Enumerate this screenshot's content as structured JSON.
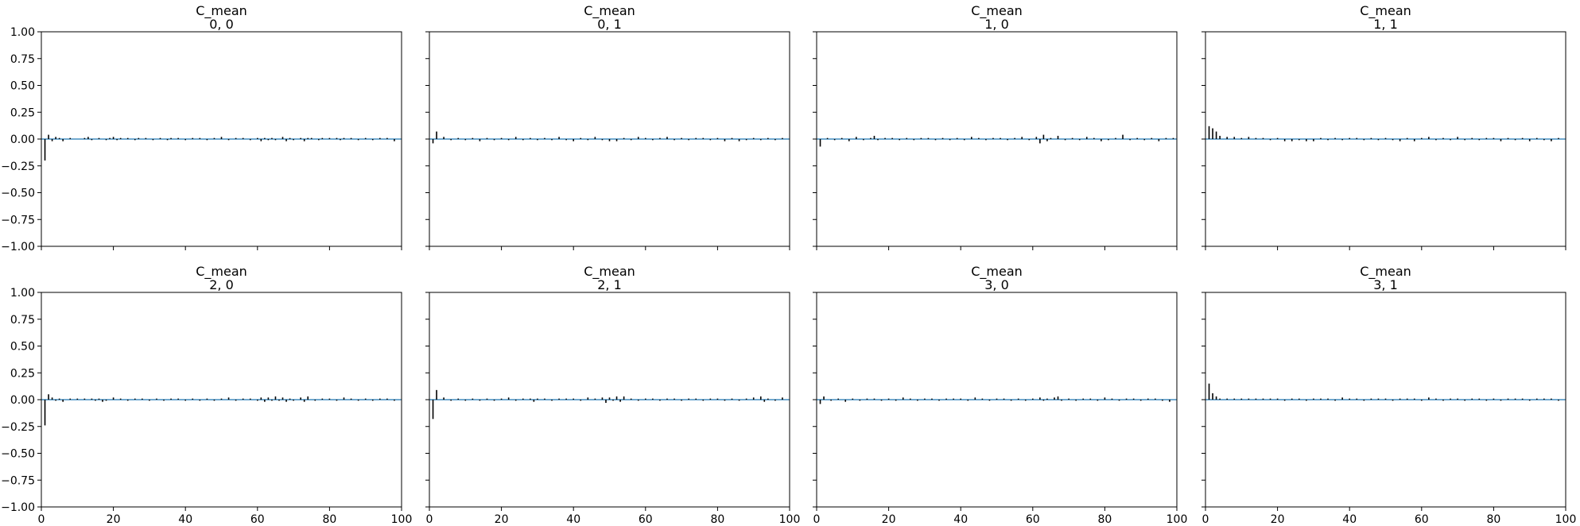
{
  "figure": {
    "background": "#ffffff",
    "bar_color": "#000000",
    "line_color": "#1f77b4"
  },
  "chart_data": [
    {
      "type": "bar",
      "title": [
        "C_mean",
        "0, 0"
      ],
      "xlim": [
        0,
        100
      ],
      "ylim": [
        -1,
        1
      ],
      "xticks": [
        "0",
        "20",
        "40",
        "60",
        "80",
        "100"
      ],
      "yticks": [
        "-1.00",
        "-0.75",
        "-0.50",
        "-0.25",
        "0.00",
        "0.25",
        "0.50",
        "0.75",
        "1.00"
      ],
      "show_xticklabels": false,
      "show_yticklabels": true,
      "lags": [
        1,
        2,
        3,
        4,
        5,
        6,
        8,
        12,
        13,
        14,
        16,
        18,
        19,
        20,
        21,
        22,
        24,
        26,
        27,
        29,
        31,
        33,
        35,
        36,
        38,
        40,
        42,
        44,
        46,
        48,
        50,
        52,
        54,
        56,
        58,
        60,
        61,
        62,
        63,
        64,
        65,
        67,
        68,
        69,
        70,
        72,
        73,
        74,
        75,
        77,
        78,
        80,
        82,
        83,
        84,
        86,
        88,
        90,
        92,
        94,
        96,
        98
      ],
      "values": [
        -0.2,
        0.04,
        -0.02,
        0.02,
        0.01,
        -0.02,
        0.01,
        0.01,
        0.02,
        -0.01,
        0.01,
        -0.01,
        0.01,
        0.02,
        -0.01,
        0.01,
        0.01,
        -0.01,
        0.01,
        0.01,
        -0.01,
        0.01,
        -0.01,
        0.01,
        0.01,
        -0.01,
        0.01,
        0.01,
        -0.01,
        0.01,
        0.02,
        -0.01,
        0.01,
        0.01,
        -0.01,
        0.01,
        -0.02,
        0.01,
        -0.01,
        0.01,
        -0.01,
        0.02,
        -0.02,
        0.01,
        -0.01,
        0.01,
        -0.02,
        0.01,
        0.01,
        -0.01,
        0.01,
        0.01,
        0.01,
        -0.01,
        0.01,
        0.01,
        -0.01,
        0.01,
        -0.01,
        0.01,
        0.01,
        -0.02
      ]
    },
    {
      "type": "bar",
      "title": [
        "C_mean",
        "0, 1"
      ],
      "xlim": [
        0,
        100
      ],
      "ylim": [
        -1,
        1
      ],
      "xticks": [
        "0",
        "20",
        "40",
        "60",
        "80",
        "100"
      ],
      "yticks": [
        "-1.00",
        "-0.75",
        "-0.50",
        "-0.25",
        "0.00",
        "0.25",
        "0.50",
        "0.75",
        "1.00"
      ],
      "show_xticklabels": false,
      "show_yticklabels": false,
      "lags": [
        1,
        2,
        4,
        6,
        8,
        10,
        12,
        14,
        16,
        18,
        20,
        22,
        24,
        26,
        28,
        30,
        32,
        34,
        36,
        38,
        40,
        42,
        44,
        46,
        48,
        50,
        52,
        54,
        56,
        58,
        60,
        62,
        64,
        66,
        68,
        70,
        72,
        74,
        76,
        78,
        80,
        82,
        84,
        86,
        88,
        90,
        92,
        94,
        96,
        98
      ],
      "values": [
        -0.04,
        0.07,
        0.02,
        -0.01,
        0.01,
        -0.01,
        0.01,
        -0.02,
        0.01,
        -0.01,
        0.01,
        -0.01,
        0.02,
        -0.01,
        0.01,
        -0.01,
        0.01,
        -0.01,
        0.02,
        -0.01,
        -0.02,
        0.01,
        -0.01,
        0.02,
        -0.01,
        -0.02,
        -0.02,
        0.01,
        -0.01,
        0.02,
        0.01,
        -0.01,
        0.01,
        0.02,
        -0.01,
        0.01,
        -0.01,
        0.01,
        0.01,
        -0.01,
        0.01,
        -0.02,
        0.01,
        -0.02,
        -0.01,
        0.01,
        -0.01,
        0.01,
        -0.01,
        0.01
      ]
    },
    {
      "type": "bar",
      "title": [
        "C_mean",
        "1, 0"
      ],
      "xlim": [
        0,
        100
      ],
      "ylim": [
        -1,
        1
      ],
      "xticks": [
        "0",
        "20",
        "40",
        "60",
        "80",
        "100"
      ],
      "yticks": [
        "-1.00",
        "-0.75",
        "-0.50",
        "-0.25",
        "0.00",
        "0.25",
        "0.50",
        "0.75",
        "1.00"
      ],
      "show_xticklabels": false,
      "show_yticklabels": false,
      "lags": [
        1,
        3,
        5,
        7,
        9,
        11,
        13,
        15,
        16,
        17,
        19,
        21,
        23,
        25,
        27,
        29,
        31,
        33,
        35,
        37,
        39,
        41,
        43,
        45,
        47,
        49,
        51,
        53,
        55,
        57,
        59,
        61,
        62,
        63,
        64,
        65,
        67,
        69,
        71,
        73,
        75,
        77,
        79,
        81,
        83,
        85,
        87,
        89,
        91,
        93,
        95,
        97,
        99
      ],
      "values": [
        -0.07,
        0.01,
        -0.01,
        0.01,
        -0.02,
        0.02,
        -0.01,
        0.01,
        0.03,
        -0.01,
        0.01,
        0.01,
        -0.01,
        0.01,
        -0.01,
        0.01,
        0.01,
        -0.01,
        0.01,
        -0.01,
        0.01,
        -0.01,
        0.02,
        0.01,
        -0.01,
        0.01,
        0.01,
        -0.01,
        0.01,
        0.02,
        -0.01,
        0.02,
        -0.04,
        0.04,
        -0.02,
        0.01,
        0.03,
        -0.01,
        0.01,
        -0.01,
        0.02,
        0.01,
        -0.02,
        -0.01,
        0.01,
        0.04,
        -0.01,
        0.01,
        -0.01,
        0.01,
        -0.02,
        0.01,
        0.01
      ]
    },
    {
      "type": "bar",
      "title": [
        "C_mean",
        "1, 1"
      ],
      "xlim": [
        0,
        100
      ],
      "ylim": [
        -1,
        1
      ],
      "xticks": [
        "0",
        "20",
        "40",
        "60",
        "80",
        "100"
      ],
      "yticks": [
        "-1.00",
        "-0.75",
        "-0.50",
        "-0.25",
        "0.00",
        "0.25",
        "0.50",
        "0.75",
        "1.00"
      ],
      "show_xticklabels": false,
      "show_yticklabels": false,
      "lags": [
        1,
        2,
        3,
        4,
        6,
        8,
        10,
        12,
        14,
        16,
        18,
        20,
        22,
        24,
        26,
        28,
        30,
        32,
        34,
        36,
        38,
        40,
        42,
        44,
        46,
        48,
        50,
        52,
        54,
        56,
        58,
        60,
        62,
        64,
        66,
        68,
        70,
        72,
        74,
        76,
        78,
        80,
        82,
        84,
        86,
        88,
        90,
        92,
        94,
        96,
        98
      ],
      "values": [
        0.12,
        0.1,
        0.07,
        0.03,
        0.02,
        0.02,
        0.01,
        0.02,
        0.01,
        0.01,
        -0.01,
        0.01,
        -0.02,
        -0.02,
        -0.01,
        -0.02,
        -0.02,
        0.01,
        -0.01,
        0.01,
        -0.01,
        0.01,
        0.01,
        -0.01,
        0.01,
        -0.01,
        0.01,
        -0.01,
        -0.02,
        0.01,
        -0.02,
        0.01,
        0.02,
        -0.01,
        0.01,
        -0.01,
        0.02,
        -0.01,
        0.01,
        -0.01,
        0.01,
        0.01,
        -0.02,
        0.01,
        -0.01,
        0.01,
        -0.02,
        0.01,
        -0.01,
        -0.02,
        0.01
      ]
    },
    {
      "type": "bar",
      "title": [
        "C_mean",
        "2, 0"
      ],
      "xlim": [
        0,
        100
      ],
      "ylim": [
        -1,
        1
      ],
      "xticks": [
        "0",
        "20",
        "40",
        "60",
        "80",
        "100"
      ],
      "yticks": [
        "-1.00",
        "-0.75",
        "-0.50",
        "-0.25",
        "0.00",
        "0.25",
        "0.50",
        "0.75",
        "1.00"
      ],
      "show_xticklabels": true,
      "show_yticklabels": true,
      "lags": [
        1,
        2,
        3,
        4,
        5,
        6,
        8,
        10,
        12,
        14,
        15,
        16,
        17,
        18,
        20,
        22,
        24,
        26,
        28,
        30,
        32,
        34,
        36,
        38,
        40,
        42,
        44,
        46,
        48,
        50,
        52,
        54,
        56,
        58,
        60,
        61,
        62,
        63,
        64,
        65,
        66,
        67,
        68,
        69,
        70,
        72,
        73,
        74,
        76,
        78,
        80,
        82,
        84,
        86,
        88,
        90,
        92,
        94,
        96,
        98
      ],
      "values": [
        -0.24,
        0.05,
        0.02,
        -0.01,
        0.01,
        -0.02,
        0.01,
        0.01,
        0.01,
        0.01,
        -0.01,
        0.01,
        -0.02,
        -0.01,
        0.02,
        0.01,
        -0.01,
        0.01,
        0.01,
        -0.01,
        0.01,
        -0.01,
        0.01,
        0.01,
        -0.01,
        0.01,
        -0.01,
        0.01,
        -0.01,
        0.01,
        0.02,
        -0.01,
        0.01,
        0.01,
        -0.01,
        0.02,
        -0.02,
        0.02,
        -0.01,
        0.03,
        -0.01,
        0.02,
        -0.02,
        0.01,
        -0.01,
        0.02,
        -0.02,
        0.03,
        -0.01,
        0.01,
        0.01,
        -0.01,
        0.02,
        0.01,
        -0.01,
        0.01,
        -0.01,
        0.01,
        0.01,
        -0.01
      ]
    },
    {
      "type": "bar",
      "title": [
        "C_mean",
        "2, 1"
      ],
      "xlim": [
        0,
        100
      ],
      "ylim": [
        -1,
        1
      ],
      "xticks": [
        "0",
        "20",
        "40",
        "60",
        "80",
        "100"
      ],
      "yticks": [
        "-1.00",
        "-0.75",
        "-0.50",
        "-0.25",
        "0.00",
        "0.25",
        "0.50",
        "0.75",
        "1.00"
      ],
      "show_xticklabels": true,
      "show_yticklabels": false,
      "lags": [
        1,
        2,
        4,
        6,
        8,
        10,
        12,
        14,
        16,
        18,
        20,
        22,
        24,
        26,
        28,
        29,
        30,
        32,
        34,
        36,
        38,
        40,
        42,
        44,
        46,
        48,
        49,
        50,
        51,
        52,
        53,
        54,
        56,
        58,
        60,
        62,
        64,
        66,
        68,
        70,
        72,
        74,
        76,
        78,
        80,
        82,
        84,
        86,
        88,
        90,
        92,
        93,
        94,
        96,
        98
      ],
      "values": [
        -0.18,
        0.09,
        0.02,
        -0.01,
        0.01,
        -0.01,
        0.01,
        -0.01,
        0.01,
        -0.01,
        0.01,
        0.02,
        -0.01,
        0.01,
        0.01,
        -0.02,
        0.01,
        0.01,
        -0.01,
        0.01,
        0.01,
        0.01,
        -0.01,
        0.02,
        0.01,
        0.02,
        -0.03,
        0.02,
        -0.01,
        0.03,
        -0.02,
        0.03,
        0.01,
        -0.01,
        0.01,
        0.01,
        -0.01,
        0.01,
        0.01,
        -0.01,
        0.01,
        0.01,
        -0.01,
        0.01,
        0.01,
        -0.01,
        0.01,
        -0.01,
        0.01,
        0.02,
        0.03,
        -0.02,
        0.01,
        -0.01,
        0.02
      ]
    },
    {
      "type": "bar",
      "title": [
        "C_mean",
        "3, 0"
      ],
      "xlim": [
        0,
        100
      ],
      "ylim": [
        -1,
        1
      ],
      "xticks": [
        "0",
        "20",
        "40",
        "60",
        "80",
        "100"
      ],
      "yticks": [
        "-1.00",
        "-0.75",
        "-0.50",
        "-0.25",
        "0.00",
        "0.25",
        "0.50",
        "0.75",
        "1.00"
      ],
      "show_xticklabels": true,
      "show_yticklabels": false,
      "lags": [
        1,
        2,
        4,
        6,
        8,
        10,
        12,
        14,
        16,
        18,
        20,
        22,
        24,
        26,
        28,
        30,
        32,
        34,
        36,
        38,
        40,
        42,
        44,
        46,
        48,
        50,
        52,
        54,
        56,
        58,
        60,
        62,
        63,
        64,
        66,
        67,
        68,
        70,
        72,
        74,
        76,
        78,
        80,
        82,
        84,
        86,
        88,
        90,
        92,
        94,
        96,
        98
      ],
      "values": [
        -0.04,
        0.03,
        -0.01,
        0.01,
        -0.02,
        0.01,
        -0.01,
        0.01,
        0.01,
        -0.01,
        0.01,
        -0.01,
        0.02,
        0.01,
        -0.01,
        0.01,
        0.01,
        -0.01,
        0.01,
        0.01,
        0.01,
        -0.01,
        0.02,
        0.01,
        -0.01,
        0.01,
        0.01,
        -0.01,
        0.01,
        -0.01,
        0.01,
        0.02,
        -0.01,
        0.01,
        0.02,
        0.03,
        -0.01,
        0.01,
        -0.01,
        0.01,
        0.01,
        -0.01,
        0.02,
        0.01,
        -0.01,
        0.01,
        0.01,
        -0.01,
        0.01,
        0.01,
        -0.01,
        -0.02
      ]
    },
    {
      "type": "bar",
      "title": [
        "C_mean",
        "3, 1"
      ],
      "xlim": [
        0,
        100
      ],
      "ylim": [
        -1,
        1
      ],
      "xticks": [
        "0",
        "20",
        "40",
        "60",
        "80",
        "100"
      ],
      "yticks": [
        "-1.00",
        "-0.75",
        "-0.50",
        "-0.25",
        "0.00",
        "0.25",
        "0.50",
        "0.75",
        "1.00"
      ],
      "show_xticklabels": true,
      "show_yticklabels": false,
      "lags": [
        1,
        2,
        3,
        4,
        6,
        8,
        10,
        12,
        14,
        16,
        18,
        20,
        22,
        24,
        26,
        28,
        30,
        32,
        34,
        36,
        38,
        40,
        42,
        44,
        46,
        48,
        50,
        52,
        54,
        56,
        58,
        60,
        62,
        64,
        66,
        68,
        70,
        72,
        74,
        76,
        78,
        80,
        82,
        84,
        86,
        88,
        90,
        92,
        94,
        96,
        98
      ],
      "values": [
        0.15,
        0.06,
        0.03,
        0.01,
        0.01,
        0.01,
        0.01,
        0.01,
        0.01,
        0.01,
        0.01,
        0.01,
        -0.01,
        0.01,
        0.01,
        -0.01,
        0.01,
        0.01,
        0.01,
        -0.01,
        0.02,
        0.01,
        0.01,
        -0.01,
        0.01,
        0.01,
        0.01,
        -0.01,
        0.01,
        0.01,
        0.01,
        -0.01,
        0.02,
        0.01,
        -0.01,
        0.01,
        0.01,
        -0.01,
        0.01,
        0.01,
        -0.01,
        0.01,
        -0.01,
        0.01,
        0.01,
        0.01,
        -0.01,
        0.01,
        0.01,
        0.01,
        -0.01
      ]
    }
  ]
}
